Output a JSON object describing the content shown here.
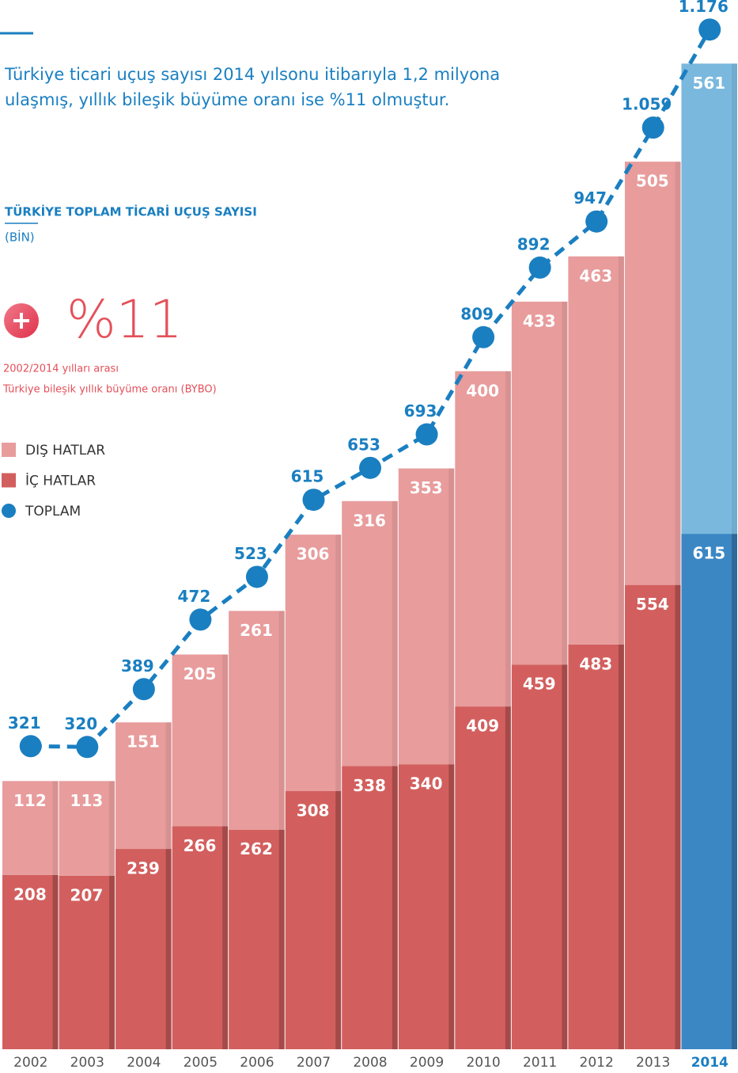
{
  "intro": [
    "Türkiye ticari uçuş sayısı 2014 yılsonu itibarıyla 1,2 milyona",
    "ulaşmış, yıllık bileşik büyüme oranı ise %11 olmuştur."
  ],
  "growth": {
    "label": "%11",
    "note": [
      "2002/2014 yılları arası",
      "Türkiye bileşik yıllık büyüme oranı (BYBO)"
    ]
  },
  "chart_data": {
    "type": "bar",
    "stacked": true,
    "title": "TÜRKİYE TOPLAM TİCARİ UÇUŞ SAYISI",
    "subtitle": "(BİN)",
    "categories": [
      "2002",
      "2003",
      "2004",
      "2005",
      "2006",
      "2007",
      "2008",
      "2009",
      "2010",
      "2011",
      "2012",
      "2013",
      "2014"
    ],
    "highlight": "2014",
    "highlight_color": "#1a7fc1",
    "ylim": [
      0,
      1250
    ],
    "series": [
      {
        "name": "DIŞ HATLAR",
        "color": "#e89c9c",
        "highlight_color": "#7ab8de",
        "values": [
          112,
          113,
          151,
          205,
          261,
          306,
          316,
          353,
          400,
          433,
          463,
          505,
          561
        ]
      },
      {
        "name": "İÇ HATLAR",
        "color": "#d25f5e",
        "highlight_color": "#3b87c4",
        "values": [
          208,
          207,
          239,
          266,
          262,
          308,
          338,
          340,
          409,
          459,
          483,
          554,
          615
        ]
      },
      {
        "name": "TOPLAM",
        "type": "line",
        "color": "#1a7fc1",
        "values": [
          321,
          320,
          389,
          472,
          523,
          615,
          653,
          693,
          809,
          892,
          947,
          1059,
          1176
        ],
        "value_labels": [
          "321",
          "320",
          "389",
          "472",
          "523",
          "615",
          "653",
          "693",
          "809",
          "892",
          "947",
          "1.059",
          "1.176"
        ]
      }
    ]
  }
}
